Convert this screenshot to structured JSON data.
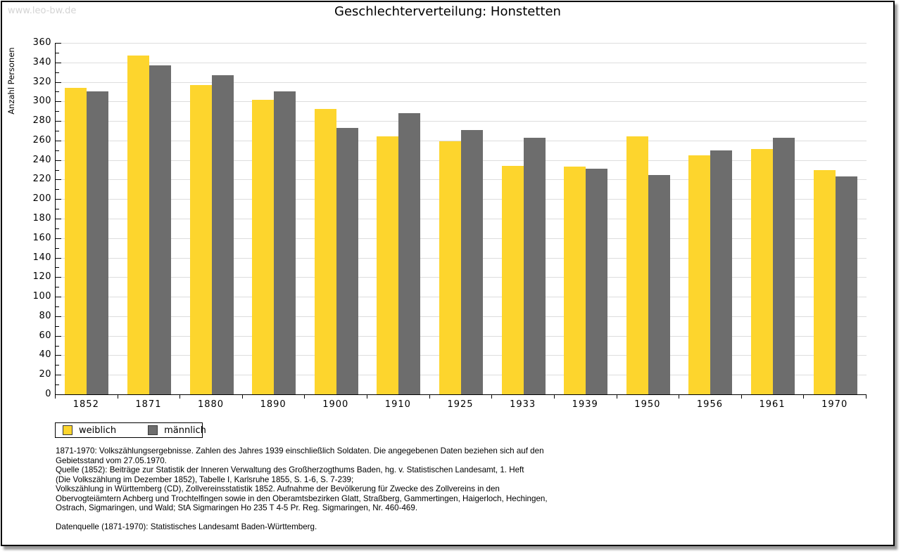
{
  "watermark": "www.leo-bw.de",
  "title": "Geschlechterverteilung: Honstetten",
  "chart_data": {
    "type": "bar",
    "title": "Geschlechterverteilung: Honstetten",
    "categories": [
      "1852",
      "1871",
      "1880",
      "1890",
      "1900",
      "1910",
      "1925",
      "1933",
      "1939",
      "1950",
      "1956",
      "1961",
      "1970"
    ],
    "series": [
      {
        "name": "weiblich",
        "color": "#fdd52d",
        "values": [
          314,
          347,
          317,
          302,
          292,
          264,
          259,
          234,
          233,
          264,
          245,
          251,
          230
        ]
      },
      {
        "name": "männlich",
        "color": "#6d6d6d",
        "values": [
          310,
          337,
          327,
          310,
          273,
          288,
          271,
          263,
          231,
          225,
          250,
          263,
          223
        ]
      }
    ],
    "xlabel": "",
    "ylabel": "Anzahl Personen",
    "ylim": [
      0,
      360
    ],
    "ytick_step": 20,
    "yminor_step": 10,
    "grid": true,
    "legend_position": "bottom-left"
  },
  "legend": {
    "items": [
      {
        "label": "weiblich",
        "color": "#fdd52d"
      },
      {
        "label": "männlich",
        "color": "#6d6d6d"
      }
    ]
  },
  "footnotes": {
    "lines": [
      "1871-1970: Volkszählungsergebnisse. Zahlen des Jahres 1939 einschließlich Soldaten. Die angegebenen Daten beziehen sich auf den",
      "Gebietsstand vom 27.05.1970.",
      "Quelle (1852): Beiträge zur Statistik der Inneren Verwaltung des Großherzogthums Baden, hg. v. Statistischen Landesamt, 1. Heft",
      "(Die Volkszählung im Dezember 1852), Tabelle I, Karlsruhe 1855, S. 1-6, S. 7-239;",
      "Volkszählung in Württemberg (CD), Zollvereinsstatistik 1852. Aufnahme der Bevölkerung für Zwecke des Zollvereins in den",
      "Obervogteiämtern Achberg und Trochtelfingen sowie in den Oberamtsbezirken Glatt, Straßberg, Gammertingen, Haigerloch, Hechingen,",
      "Ostrach, Sigmaringen, und Wald; StA Sigmaringen Ho 235 T 4-5 Pr. Reg. Sigmaringen, Nr. 460-469."
    ],
    "source_line": "Datenquelle (1871-1970): Statistisches Landesamt Baden-Württemberg."
  },
  "colors": {
    "female_bar": "#fdd52d",
    "male_bar": "#6d6d6d",
    "gridline": "#dddddd",
    "axis": "#000000",
    "watermark": "#d4d4d4",
    "frame_border": "#000000",
    "shadow": "#9a9a9a"
  }
}
